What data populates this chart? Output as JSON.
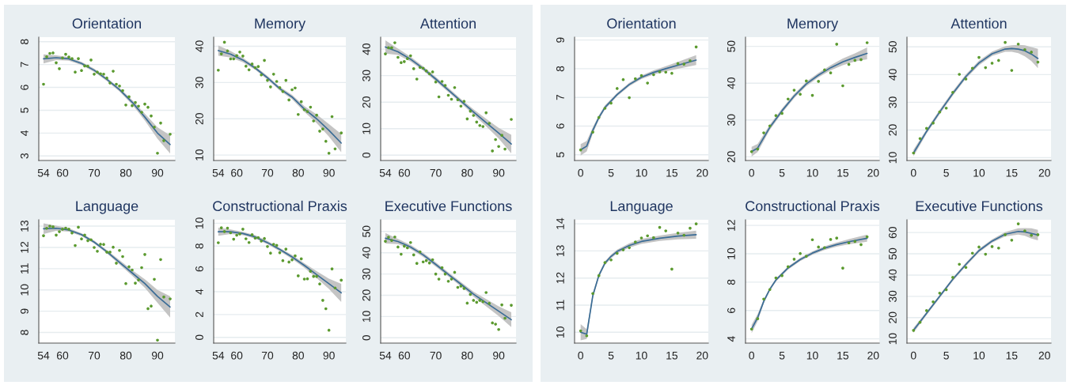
{
  "chart_data": [
    {
      "type": "scatter",
      "title": "Orientation",
      "xlim": [
        52.5,
        95.5
      ],
      "xticks": [
        54,
        60,
        70,
        80,
        90
      ],
      "ylim": [
        2.8,
        8.2
      ],
      "yticks": [
        3,
        4,
        5,
        6,
        7,
        8
      ],
      "grid": "y",
      "series": [
        {
          "type": "scatter",
          "color": "#5b9a2f",
          "x": [
            54,
            55,
            56,
            57,
            58,
            59,
            60,
            61,
            62,
            63,
            64,
            65,
            66,
            67,
            68,
            69,
            70,
            71,
            72,
            73,
            74,
            75,
            76,
            77,
            78,
            79,
            80,
            81,
            82,
            83,
            84,
            85,
            86,
            87,
            88,
            89,
            90,
            91,
            92,
            94
          ],
          "values": [
            6.14,
            7.34,
            7.49,
            7.51,
            7.08,
            6.82,
            7.29,
            7.45,
            7.33,
            7.26,
            6.67,
            7.26,
            6.74,
            6.94,
            6.93,
            7.2,
            6.58,
            6.67,
            6.6,
            6.58,
            6.41,
            6.19,
            6.71,
            6.14,
            6.06,
            5.86,
            5.23,
            5.59,
            5.2,
            5.34,
            5.18,
            4.91,
            5.27,
            5.13,
            4.75,
            4.26,
            3.12,
            4.44,
            3.67,
            3.95
          ]
        },
        {
          "type": "line",
          "color": "#3a6c96",
          "x": [
            54,
            58,
            62,
            66,
            70,
            74,
            78,
            82,
            86,
            90,
            94
          ],
          "values": [
            7.25,
            7.3,
            7.25,
            7.05,
            6.75,
            6.35,
            5.9,
            5.35,
            4.7,
            4.0,
            3.5
          ],
          "lower": [
            7.05,
            7.2,
            7.17,
            6.98,
            6.68,
            6.28,
            5.82,
            5.25,
            4.55,
            3.75,
            3.1
          ],
          "upper": [
            7.45,
            7.4,
            7.33,
            7.12,
            6.82,
            6.42,
            5.98,
            5.45,
            4.85,
            4.25,
            3.9
          ]
        }
      ]
    },
    {
      "type": "scatter",
      "title": "Memory",
      "xlim": [
        52.5,
        95.5
      ],
      "xticks": [
        54,
        60,
        70,
        80,
        90
      ],
      "ylim": [
        8.5,
        42.5
      ],
      "yticks": [
        10,
        20,
        30,
        40
      ],
      "grid": "y",
      "series": [
        {
          "type": "scatter",
          "color": "#5b9a2f",
          "x": [
            54,
            55,
            56,
            57,
            58,
            59,
            60,
            61,
            62,
            63,
            64,
            65,
            66,
            67,
            68,
            69,
            70,
            71,
            72,
            73,
            74,
            75,
            76,
            77,
            78,
            79,
            80,
            81,
            82,
            83,
            84,
            85,
            86,
            87,
            88,
            89,
            90,
            91,
            92,
            94
          ],
          "values": [
            33.4,
            37.9,
            41.1,
            38.7,
            36.5,
            36.5,
            37.4,
            38.4,
            37.3,
            34.5,
            33.5,
            35.1,
            34.1,
            34.4,
            32.1,
            36.1,
            30.6,
            28.8,
            32.3,
            30.3,
            28.6,
            27.5,
            30.6,
            25.2,
            28,
            28.5,
            21.2,
            24.7,
            22.5,
            22,
            23.2,
            19.4,
            21,
            16.6,
            17.2,
            13.8,
            10.5,
            20.6,
            11.7,
            16.1
          ]
        },
        {
          "type": "line",
          "color": "#3a6c96",
          "x": [
            54,
            58,
            62,
            66,
            70,
            74,
            78,
            82,
            86,
            90,
            94
          ],
          "values": [
            38.8,
            37.8,
            36.2,
            34,
            31.3,
            28.3,
            26,
            22.7,
            20,
            16.8,
            13.3
          ],
          "lower": [
            37.4,
            36.9,
            35.6,
            33.5,
            30.8,
            27.8,
            25.4,
            21.9,
            18.8,
            15.1,
            10.8
          ],
          "upper": [
            40.2,
            38.7,
            36.8,
            34.5,
            31.8,
            28.8,
            26.6,
            23.5,
            21.2,
            18.5,
            15.8
          ]
        }
      ]
    },
    {
      "type": "scatter",
      "title": "Attention",
      "xlim": [
        52.5,
        95.5
      ],
      "xticks": [
        54,
        60,
        70,
        80,
        90
      ],
      "ylim": [
        -2,
        44.5
      ],
      "yticks": [
        0,
        10,
        20,
        30,
        40
      ],
      "grid": "y",
      "series": [
        {
          "type": "scatter",
          "color": "#5b9a2f",
          "x": [
            54,
            55,
            56,
            57,
            58,
            59,
            60,
            61,
            62,
            63,
            64,
            65,
            66,
            67,
            68,
            69,
            70,
            71,
            72,
            73,
            74,
            75,
            76,
            77,
            78,
            79,
            80,
            81,
            82,
            83,
            84,
            85,
            86,
            87,
            88,
            89,
            90,
            91,
            92,
            94
          ],
          "values": [
            38.2,
            40.5,
            40.5,
            42.4,
            36.9,
            34.9,
            35.3,
            36.4,
            37.5,
            32.6,
            28.7,
            33.1,
            32.8,
            31.8,
            30.7,
            31.4,
            27.6,
            22,
            27.8,
            26.3,
            22.6,
            21.1,
            25.5,
            20.9,
            18.5,
            20.3,
            13.7,
            16.6,
            15,
            12.5,
            11.2,
            10.8,
            16,
            12,
            1.6,
            5.9,
            3.3,
            7.5,
            2.3,
            13.5
          ]
        },
        {
          "type": "line",
          "color": "#3a6c96",
          "x": [
            54,
            58,
            62,
            66,
            70,
            74,
            78,
            82,
            86,
            90,
            94
          ],
          "values": [
            40.8,
            39,
            36.2,
            32.7,
            28.7,
            24.6,
            20.4,
            16.3,
            12.3,
            8.3,
            4.2
          ],
          "lower": [
            38.3,
            37.8,
            35.3,
            31.9,
            27.9,
            23.8,
            19.6,
            15.3,
            10.9,
            6.3,
            0.7
          ],
          "upper": [
            43.3,
            40.2,
            37.1,
            33.5,
            29.5,
            25.4,
            21.2,
            17.3,
            13.7,
            10.3,
            7.7
          ]
        }
      ]
    },
    {
      "type": "scatter",
      "title": "Language",
      "xlim": [
        52.5,
        95.5
      ],
      "xticks": [
        54,
        60,
        70,
        80,
        90
      ],
      "ylim": [
        7.5,
        13.3
      ],
      "yticks": [
        8,
        9,
        10,
        11,
        12,
        13
      ],
      "grid": "y",
      "series": [
        {
          "type": "scatter",
          "color": "#5b9a2f",
          "x": [
            54,
            55,
            56,
            57,
            58,
            59,
            60,
            61,
            62,
            63,
            64,
            65,
            66,
            67,
            68,
            69,
            70,
            71,
            72,
            73,
            74,
            75,
            76,
            77,
            78,
            79,
            80,
            81,
            82,
            83,
            84,
            85,
            86,
            87,
            88,
            89,
            90,
            91,
            92,
            94
          ],
          "values": [
            12.55,
            12.9,
            13,
            12.97,
            12.58,
            12.74,
            12.86,
            12.91,
            12.86,
            12.68,
            12.09,
            12.95,
            12.4,
            12.58,
            12.32,
            12.36,
            12,
            11.82,
            12.15,
            12.14,
            11.78,
            11.78,
            12.01,
            11.26,
            11.86,
            11.57,
            10.3,
            11.09,
            10.94,
            10.32,
            10.47,
            11.05,
            11.67,
            9.12,
            9.24,
            10.5,
            7.64,
            11.43,
            9.67,
            9.58
          ]
        },
        {
          "type": "line",
          "color": "#3a6c96",
          "x": [
            54,
            58,
            62,
            66,
            70,
            74,
            78,
            82,
            86,
            90,
            94
          ],
          "values": [
            12.88,
            12.9,
            12.82,
            12.6,
            12.25,
            11.8,
            11.3,
            10.8,
            10.3,
            9.7,
            9.2
          ],
          "lower": [
            12.63,
            12.78,
            12.74,
            12.53,
            12.18,
            11.72,
            11.2,
            10.67,
            10.1,
            9.4,
            8.7
          ],
          "upper": [
            13.13,
            13.02,
            12.9,
            12.67,
            12.32,
            11.88,
            11.4,
            10.93,
            10.5,
            10.0,
            9.7
          ]
        }
      ]
    },
    {
      "type": "scatter",
      "title": "Constructional Praxis",
      "xlim": [
        52.5,
        95.5
      ],
      "xticks": [
        54,
        60,
        70,
        80,
        90
      ],
      "ylim": [
        -0.5,
        10.3
      ],
      "yticks": [
        0,
        2,
        4,
        6,
        8,
        10
      ],
      "grid": "y",
      "series": [
        {
          "type": "scatter",
          "color": "#5b9a2f",
          "x": [
            54,
            55,
            56,
            57,
            58,
            59,
            60,
            61,
            62,
            63,
            64,
            65,
            66,
            67,
            68,
            69,
            70,
            71,
            72,
            73,
            74,
            75,
            76,
            77,
            78,
            79,
            80,
            81,
            82,
            83,
            84,
            85,
            86,
            87,
            88,
            89,
            90,
            91,
            92,
            94
          ],
          "values": [
            8.29,
            9.6,
            9.27,
            9.57,
            9.16,
            8.6,
            8.95,
            9.06,
            9.48,
            8.64,
            8.31,
            8.99,
            8.69,
            8.74,
            8.43,
            8.66,
            7.96,
            7.38,
            8.15,
            8.06,
            7.42,
            6.72,
            7.73,
            6.6,
            6.79,
            7.14,
            5.39,
            6.88,
            5.11,
            5.13,
            5.79,
            5.34,
            5.34,
            4.68,
            3.25,
            2.51,
            0.63,
            6,
            4.33,
            5.01
          ]
        },
        {
          "type": "line",
          "color": "#3a6c96",
          "x": [
            54,
            58,
            62,
            66,
            70,
            74,
            78,
            82,
            86,
            90,
            94
          ],
          "values": [
            9.25,
            9.25,
            9.1,
            8.8,
            8.3,
            7.7,
            7.05,
            6.3,
            5.5,
            4.7,
            3.9
          ],
          "lower": [
            8.9,
            9.05,
            8.95,
            8.65,
            8.15,
            7.55,
            6.88,
            6.1,
            5.2,
            4.25,
            3.1
          ],
          "upper": [
            9.6,
            9.45,
            9.25,
            8.95,
            8.45,
            7.85,
            7.22,
            6.5,
            5.8,
            5.15,
            4.7
          ]
        }
      ]
    },
    {
      "type": "scatter",
      "title": "Executive Functions",
      "xlim": [
        52.5,
        95.5
      ],
      "xticks": [
        54,
        60,
        70,
        80,
        90
      ],
      "ylim": [
        -2.5,
        55.5
      ],
      "yticks": [
        0,
        10,
        20,
        30,
        40,
        50
      ],
      "grid": "y",
      "series": [
        {
          "type": "scatter",
          "color": "#5b9a2f",
          "x": [
            54,
            55,
            56,
            57,
            58,
            59,
            60,
            61,
            62,
            63,
            64,
            65,
            66,
            67,
            68,
            69,
            70,
            71,
            72,
            73,
            74,
            75,
            76,
            77,
            78,
            79,
            80,
            81,
            82,
            83,
            84,
            85,
            86,
            87,
            88,
            89,
            90,
            91,
            92,
            94
          ],
          "values": [
            45.4,
            47.3,
            45.8,
            47.4,
            42.7,
            39.3,
            43.1,
            42.3,
            44.8,
            39,
            35,
            40.4,
            35.7,
            36.3,
            35.2,
            36.7,
            30,
            27.6,
            33,
            30,
            26.6,
            27.6,
            30.8,
            23.7,
            24.3,
            23.2,
            16.3,
            20.4,
            17.6,
            16.7,
            17.6,
            17,
            21.3,
            16.2,
            7,
            6.4,
            3.9,
            15.5,
            9.2,
            15.3
          ]
        },
        {
          "type": "line",
          "color": "#3a6c96",
          "x": [
            54,
            58,
            62,
            66,
            70,
            74,
            78,
            82,
            86,
            90,
            94
          ],
          "values": [
            46.8,
            45.3,
            42.7,
            39,
            34.5,
            29.8,
            25.2,
            20.5,
            16.5,
            12.5,
            8.5
          ],
          "lower": [
            44.3,
            44.1,
            41.7,
            38,
            33.5,
            28.8,
            24.2,
            19.3,
            14.8,
            10.2,
            5
          ],
          "upper": [
            49.3,
            46.5,
            43.7,
            40,
            35.5,
            30.8,
            26.2,
            21.7,
            18.2,
            14.8,
            12
          ]
        }
      ]
    },
    {
      "type": "scatter",
      "title": "Orientation",
      "xlim": [
        -1,
        21
      ],
      "xticks": [
        0,
        5,
        10,
        15,
        20
      ],
      "ylim": [
        4.8,
        9.1
      ],
      "yticks": [
        5,
        6,
        7,
        8,
        9
      ],
      "grid": "y",
      "series": [
        {
          "type": "scatter",
          "color": "#5b9a2f",
          "x": [
            0,
            2,
            3,
            4,
            5,
            6,
            7,
            8,
            9,
            10,
            11,
            12,
            13,
            14,
            15,
            16,
            17,
            18,
            19
          ],
          "values": [
            5.17,
            5.79,
            6.3,
            6.62,
            6.8,
            7.31,
            7.62,
            6.99,
            7.65,
            7.76,
            7.5,
            7.79,
            7.89,
            7.88,
            7.84,
            8.18,
            8.16,
            8.28,
            8.76
          ]
        },
        {
          "type": "line",
          "color": "#3a6c96",
          "x": [
            0,
            1,
            2,
            3,
            4,
            6,
            8,
            10,
            12,
            14,
            16,
            19
          ],
          "values": [
            5.17,
            5.3,
            5.85,
            6.3,
            6.65,
            7.1,
            7.45,
            7.7,
            7.87,
            8.0,
            8.12,
            8.3
          ],
          "lower": [
            4.97,
            5.12,
            5.74,
            6.22,
            6.58,
            7.04,
            7.39,
            7.64,
            7.8,
            7.91,
            8.0,
            8.13
          ],
          "upper": [
            5.37,
            5.48,
            5.96,
            6.38,
            6.72,
            7.16,
            7.51,
            7.76,
            7.94,
            8.09,
            8.24,
            8.47
          ]
        }
      ]
    },
    {
      "type": "scatter",
      "title": "Memory",
      "xlim": [
        -1,
        21
      ],
      "xticks": [
        0,
        5,
        10,
        15,
        20
      ],
      "ylim": [
        19,
        52.5
      ],
      "yticks": [
        20,
        30,
        40,
        50
      ],
      "grid": "y",
      "series": [
        {
          "type": "scatter",
          "color": "#5b9a2f",
          "x": [
            0,
            1,
            2,
            3,
            4,
            5,
            6,
            7,
            8,
            9,
            10,
            11,
            12,
            13,
            14,
            15,
            16,
            17,
            18,
            19
          ],
          "values": [
            21.4,
            22.1,
            26.5,
            28.4,
            31.2,
            31.8,
            35.7,
            38.1,
            37,
            40.6,
            36.7,
            40.5,
            43.6,
            42.8,
            50.6,
            39.3,
            45.1,
            46.2,
            46.4,
            51
          ]
        },
        {
          "type": "line",
          "color": "#3a6c96",
          "x": [
            0,
            1,
            3,
            5,
            7,
            9,
            11,
            13,
            15,
            17,
            19
          ],
          "values": [
            21.4,
            22.4,
            28,
            32.5,
            36.5,
            39.8,
            42.2,
            44.2,
            45.8,
            47,
            48.1
          ],
          "lower": [
            20.1,
            21.3,
            27.3,
            31.9,
            35.9,
            39.2,
            41.6,
            43.5,
            44.9,
            45.9,
            46.5
          ],
          "upper": [
            22.7,
            23.5,
            28.7,
            33.1,
            37.1,
            40.4,
            42.8,
            44.9,
            46.7,
            48.1,
            49.7
          ]
        }
      ]
    },
    {
      "type": "scatter",
      "title": "Attention",
      "xlim": [
        -1,
        21
      ],
      "xticks": [
        0,
        5,
        10,
        15,
        20
      ],
      "ylim": [
        9,
        53.5
      ],
      "yticks": [
        10,
        20,
        30,
        40,
        50
      ],
      "grid": "y",
      "series": [
        {
          "type": "scatter",
          "color": "#5b9a2f",
          "x": [
            0,
            1,
            2,
            3,
            4,
            5,
            6,
            7,
            8,
            9,
            10,
            11,
            12,
            13,
            14,
            15,
            16,
            17,
            18,
            19
          ],
          "values": [
            11.7,
            16.9,
            20.6,
            22.5,
            26.5,
            27.9,
            33.6,
            40.1,
            38.4,
            42.3,
            46.2,
            42.5,
            44.1,
            45.1,
            51.6,
            41.5,
            51,
            49,
            48.1,
            44.5
          ]
        },
        {
          "type": "line",
          "color": "#3a6c96",
          "x": [
            0,
            2,
            4,
            6,
            8,
            10,
            12,
            14,
            15,
            16,
            17,
            18,
            19
          ],
          "values": [
            11.7,
            19.5,
            26.5,
            33.2,
            39.3,
            44.2,
            47.5,
            49.2,
            49.4,
            49.2,
            48.6,
            47.4,
            45.8
          ],
          "lower": [
            10.5,
            18.7,
            25.7,
            32.4,
            38.5,
            43.4,
            46.7,
            48.2,
            48.2,
            47.7,
            46.6,
            44.9,
            42.3
          ],
          "upper": [
            12.9,
            20.3,
            27.3,
            34,
            40.1,
            45,
            48.3,
            50.2,
            50.6,
            50.7,
            50.6,
            49.9,
            49.3
          ]
        }
      ]
    },
    {
      "type": "scatter",
      "title": "Language",
      "xlim": [
        -1,
        21
      ],
      "xticks": [
        0,
        5,
        10,
        15,
        20
      ],
      "ylim": [
        9.6,
        14.15
      ],
      "yticks": [
        10,
        11,
        12,
        13,
        14
      ],
      "grid": "y",
      "series": [
        {
          "type": "scatter",
          "color": "#5b9a2f",
          "x": [
            0,
            1,
            2,
            3,
            4,
            5,
            6,
            7,
            8,
            9,
            10,
            11,
            12,
            13,
            14,
            15,
            16,
            17,
            18,
            19
          ],
          "values": [
            10.05,
            9.87,
            11.43,
            12.09,
            12.57,
            12.67,
            12.91,
            13.04,
            13.12,
            13.33,
            13.48,
            13.56,
            13.49,
            13.87,
            13.74,
            12.33,
            13.66,
            13.58,
            13.84,
            14
          ]
        },
        {
          "type": "line",
          "color": "#3a6c96",
          "x": [
            0,
            1,
            2,
            3,
            4,
            5,
            6,
            8,
            10,
            13,
            16,
            19
          ],
          "values": [
            10.0,
            9.93,
            11.35,
            12.1,
            12.55,
            12.8,
            12.98,
            13.2,
            13.35,
            13.47,
            13.55,
            13.6
          ],
          "lower": [
            9.7,
            9.75,
            11.25,
            12.02,
            12.48,
            12.73,
            12.91,
            13.12,
            13.26,
            13.37,
            13.43,
            13.45
          ],
          "upper": [
            10.3,
            10.11,
            11.45,
            12.18,
            12.62,
            12.87,
            13.05,
            13.28,
            13.44,
            13.57,
            13.67,
            13.75
          ]
        }
      ]
    },
    {
      "type": "scatter",
      "title": "Constructional Praxis",
      "xlim": [
        -1,
        21
      ],
      "xticks": [
        0,
        5,
        10,
        15,
        20
      ],
      "ylim": [
        3.7,
        12.4
      ],
      "yticks": [
        4,
        6,
        8,
        10,
        12
      ],
      "grid": "y",
      "series": [
        {
          "type": "scatter",
          "color": "#5b9a2f",
          "x": [
            0,
            1,
            2,
            3,
            4,
            5,
            6,
            7,
            8,
            9,
            10,
            11,
            12,
            13,
            14,
            15,
            16,
            17,
            18,
            19
          ],
          "values": [
            4.69,
            5.42,
            6.81,
            7.48,
            8.3,
            8.46,
            9.09,
            9.62,
            10.02,
            9.83,
            10.99,
            10.48,
            10.43,
            11.01,
            11.11,
            8.99,
            10.77,
            10.87,
            10.65,
            11.2
          ]
        },
        {
          "type": "line",
          "color": "#3a6c96",
          "x": [
            0,
            1,
            2,
            3,
            4,
            6,
            8,
            10,
            12,
            14,
            16,
            19
          ],
          "values": [
            4.7,
            5.5,
            6.65,
            7.5,
            8.15,
            9.0,
            9.6,
            10.05,
            10.4,
            10.65,
            10.85,
            11.1
          ],
          "lower": [
            4.4,
            5.25,
            6.5,
            7.38,
            8.04,
            8.89,
            9.49,
            9.93,
            10.27,
            10.5,
            10.67,
            10.85
          ],
          "upper": [
            5.0,
            5.75,
            6.8,
            7.62,
            8.26,
            9.11,
            9.71,
            10.17,
            10.53,
            10.8,
            11.03,
            11.35
          ]
        }
      ]
    },
    {
      "type": "scatter",
      "title": "Executive Functions",
      "xlim": [
        -1,
        21
      ],
      "xticks": [
        0,
        5,
        10,
        15,
        20
      ],
      "ylim": [
        8,
        66
      ],
      "yticks": [
        10,
        20,
        30,
        40,
        50,
        60
      ],
      "grid": "y",
      "series": [
        {
          "type": "scatter",
          "color": "#5b9a2f",
          "x": [
            0,
            1,
            2,
            3,
            4,
            5,
            6,
            7,
            8,
            9,
            10,
            11,
            12,
            13,
            14,
            15,
            16,
            17,
            18,
            19
          ],
          "values": [
            14,
            17.8,
            23.3,
            27.4,
            31.5,
            33.1,
            38.9,
            45.1,
            43.6,
            50.3,
            53.2,
            49.8,
            53.4,
            52.7,
            59,
            56.4,
            64.1,
            60.8,
            58.7,
            59
          ]
        },
        {
          "type": "line",
          "color": "#3a6c96",
          "x": [
            0,
            2,
            4,
            6,
            8,
            10,
            12,
            14,
            16,
            17,
            18,
            19
          ],
          "values": [
            14,
            22,
            30,
            38,
            45,
            51.5,
            56,
            59.2,
            60.5,
            60.3,
            59.6,
            58.8
          ],
          "lower": [
            12.8,
            21.2,
            29.2,
            37.2,
            44.2,
            50.7,
            55.2,
            58.2,
            59,
            58.5,
            57.2,
            56.3
          ],
          "upper": [
            15.2,
            22.8,
            30.8,
            38.8,
            45.8,
            52.3,
            56.8,
            60.2,
            62,
            62.1,
            62,
            61.3
          ]
        }
      ]
    }
  ]
}
